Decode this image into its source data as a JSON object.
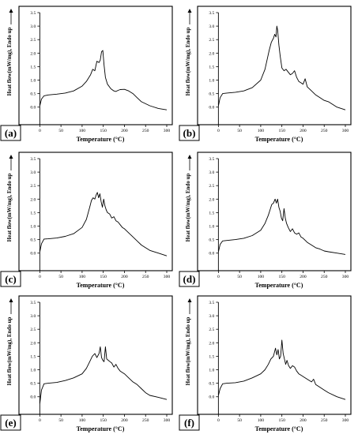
{
  "chart_data": [
    {
      "type": "line",
      "panel_label": "(a)",
      "xlabel": "Temperature (°C)",
      "ylabel": "Heat flow(mW/mg), Endo up",
      "xlim": [
        -10,
        300
      ],
      "ylim": [
        -0.3,
        3.5
      ],
      "xticks": [
        0,
        50,
        100,
        150,
        200,
        250,
        300
      ],
      "yticks": [
        0.0,
        0.5,
        1.0,
        1.5,
        2.0,
        2.5,
        3.0,
        3.5
      ],
      "series": [
        {
          "x": [
            0,
            4,
            10,
            20,
            40,
            60,
            80,
            100,
            110,
            120,
            125,
            130,
            135,
            140,
            143,
            146,
            149,
            152,
            155,
            160,
            168,
            175,
            180,
            185,
            190,
            200,
            210,
            220,
            230,
            240,
            260,
            280,
            300
          ],
          "y": [
            0.05,
            0.3,
            0.42,
            0.45,
            0.48,
            0.52,
            0.6,
            0.78,
            0.95,
            1.2,
            1.4,
            1.35,
            1.7,
            1.65,
            1.75,
            2.05,
            2.1,
            1.55,
            1.1,
            0.85,
            0.68,
            0.6,
            0.58,
            0.62,
            0.65,
            0.66,
            0.6,
            0.5,
            0.35,
            0.2,
            0.05,
            -0.05,
            -0.1
          ]
        }
      ]
    },
    {
      "type": "line",
      "panel_label": "(b)",
      "xlabel": "Temperature (°C)",
      "ylabel": "Heat flow(mW/mg), Endo up",
      "xlim": [
        -10,
        300
      ],
      "ylim": [
        -0.3,
        3.5
      ],
      "xticks": [
        0,
        50,
        100,
        150,
        200,
        250,
        300
      ],
      "yticks": [
        0.0,
        0.5,
        1.0,
        1.5,
        2.0,
        2.5,
        3.0,
        3.5
      ],
      "series": [
        {
          "x": [
            0,
            4,
            10,
            20,
            40,
            60,
            80,
            100,
            110,
            120,
            125,
            130,
            133,
            136,
            138,
            140,
            143,
            146,
            150,
            155,
            160,
            165,
            170,
            175,
            180,
            185,
            190,
            195,
            200,
            205,
            210,
            220,
            230,
            240,
            250,
            260,
            270,
            280,
            300
          ],
          "y": [
            0.05,
            0.35,
            0.5,
            0.52,
            0.55,
            0.6,
            0.72,
            1.0,
            1.4,
            2.1,
            2.4,
            2.55,
            2.7,
            2.6,
            3.0,
            2.85,
            2.3,
            1.9,
            1.45,
            1.35,
            1.4,
            1.3,
            1.2,
            1.25,
            1.35,
            1.1,
            0.95,
            0.9,
            0.85,
            1.05,
            0.75,
            0.6,
            0.45,
            0.35,
            0.25,
            0.2,
            0.1,
            0.0,
            -0.1
          ]
        }
      ]
    },
    {
      "type": "line",
      "panel_label": "(c)",
      "xlabel": "Temperature (°C)",
      "ylabel": "Heat flow(mW/mg), Endo up",
      "xlim": [
        -10,
        300
      ],
      "ylim": [
        -0.3,
        3.5
      ],
      "xticks": [
        0,
        50,
        100,
        150,
        200,
        250,
        300
      ],
      "yticks": [
        0.0,
        0.5,
        1.0,
        1.5,
        2.0,
        2.5,
        3.0,
        3.5
      ],
      "series": [
        {
          "x": [
            0,
            4,
            10,
            20,
            40,
            60,
            80,
            100,
            110,
            118,
            122,
            126,
            130,
            133,
            136,
            139,
            142,
            145,
            148,
            151,
            154,
            157,
            160,
            165,
            170,
            175,
            180,
            185,
            190,
            195,
            200,
            210,
            220,
            230,
            240,
            250,
            260,
            280,
            300
          ],
          "y": [
            0.05,
            0.35,
            0.52,
            0.53,
            0.56,
            0.62,
            0.72,
            0.95,
            1.25,
            1.7,
            1.95,
            2.05,
            2.0,
            2.15,
            2.25,
            2.05,
            2.2,
            1.9,
            1.7,
            2.0,
            1.75,
            1.6,
            1.5,
            1.45,
            1.3,
            1.35,
            1.2,
            1.15,
            1.05,
            0.95,
            0.9,
            0.75,
            0.6,
            0.45,
            0.3,
            0.2,
            0.1,
            0.0,
            -0.1
          ]
        }
      ]
    },
    {
      "type": "line",
      "panel_label": "(d)",
      "xlabel": "Temperature (°C)",
      "ylabel": "Heat flow(mW/mg), Endo up",
      "xlim": [
        -10,
        300
      ],
      "ylim": [
        -0.3,
        3.5
      ],
      "xticks": [
        0,
        50,
        100,
        150,
        200,
        250,
        300
      ],
      "yticks": [
        0.0,
        0.5,
        1.0,
        1.5,
        2.0,
        2.5,
        3.0,
        3.5
      ],
      "series": [
        {
          "x": [
            0,
            4,
            10,
            20,
            40,
            60,
            80,
            100,
            110,
            118,
            122,
            126,
            130,
            134,
            137,
            140,
            143,
            146,
            149,
            152,
            155,
            158,
            161,
            165,
            170,
            175,
            180,
            185,
            190,
            195,
            200,
            210,
            220,
            230,
            240,
            250,
            260,
            280,
            300
          ],
          "y": [
            0.05,
            0.32,
            0.45,
            0.47,
            0.5,
            0.55,
            0.65,
            0.85,
            1.1,
            1.4,
            1.6,
            1.8,
            1.85,
            2.0,
            1.85,
            2.0,
            1.7,
            1.55,
            1.3,
            1.2,
            1.65,
            1.3,
            1.1,
            0.95,
            0.8,
            0.9,
            0.75,
            0.7,
            0.75,
            0.6,
            0.55,
            0.4,
            0.3,
            0.2,
            0.15,
            0.08,
            0.05,
            0.0,
            -0.05
          ]
        }
      ]
    },
    {
      "type": "line",
      "panel_label": "(e)",
      "xlabel": "Temperature (°C)",
      "ylabel": "Heat flow(mW/mg), Endo up",
      "xlim": [
        -10,
        300
      ],
      "ylim": [
        -0.3,
        3.5
      ],
      "xticks": [
        0,
        50,
        100,
        150,
        200,
        250,
        300
      ],
      "yticks": [
        0.0,
        0.5,
        1.0,
        1.5,
        2.0,
        2.5,
        3.0,
        3.5
      ],
      "series": [
        {
          "x": [
            0,
            4,
            10,
            20,
            40,
            60,
            80,
            100,
            110,
            118,
            124,
            130,
            135,
            140,
            143,
            146,
            149,
            152,
            155,
            158,
            162,
            166,
            170,
            175,
            180,
            185,
            190,
            200,
            210,
            220,
            230,
            240,
            250,
            260,
            280,
            300
          ],
          "y": [
            -0.25,
            0.25,
            0.48,
            0.5,
            0.53,
            0.6,
            0.7,
            0.85,
            1.05,
            1.3,
            1.5,
            1.6,
            1.45,
            1.6,
            1.85,
            1.45,
            1.35,
            1.3,
            1.85,
            1.4,
            1.35,
            1.3,
            1.25,
            1.1,
            1.2,
            1.05,
            0.95,
            0.85,
            0.7,
            0.55,
            0.45,
            0.3,
            0.15,
            0.05,
            -0.02,
            -0.1
          ]
        }
      ]
    },
    {
      "type": "line",
      "panel_label": "(f)",
      "xlabel": "Temperature (°C)",
      "ylabel": "Heat flow(mW/mg), Endo up",
      "xlim": [
        -10,
        300
      ],
      "ylim": [
        -0.3,
        3.5
      ],
      "xticks": [
        0,
        50,
        100,
        150,
        200,
        250,
        300
      ],
      "yticks": [
        0.0,
        0.5,
        1.0,
        1.5,
        2.0,
        2.5,
        3.0,
        3.5
      ],
      "series": [
        {
          "x": [
            0,
            4,
            10,
            20,
            40,
            60,
            80,
            100,
            110,
            118,
            124,
            130,
            135,
            138,
            141,
            144,
            147,
            150,
            153,
            156,
            159,
            162,
            166,
            170,
            175,
            180,
            185,
            190,
            195,
            200,
            210,
            220,
            225,
            230,
            240,
            250,
            260,
            280,
            300
          ],
          "y": [
            0.05,
            0.3,
            0.48,
            0.5,
            0.52,
            0.58,
            0.7,
            0.85,
            1.0,
            1.2,
            1.4,
            1.5,
            1.8,
            1.55,
            1.75,
            1.4,
            1.5,
            2.1,
            1.6,
            1.4,
            1.2,
            1.35,
            1.15,
            1.05,
            1.15,
            1.1,
            0.95,
            0.85,
            0.8,
            0.75,
            0.65,
            0.55,
            0.65,
            0.45,
            0.35,
            0.25,
            0.15,
            0.0,
            -0.1
          ]
        }
      ]
    }
  ]
}
